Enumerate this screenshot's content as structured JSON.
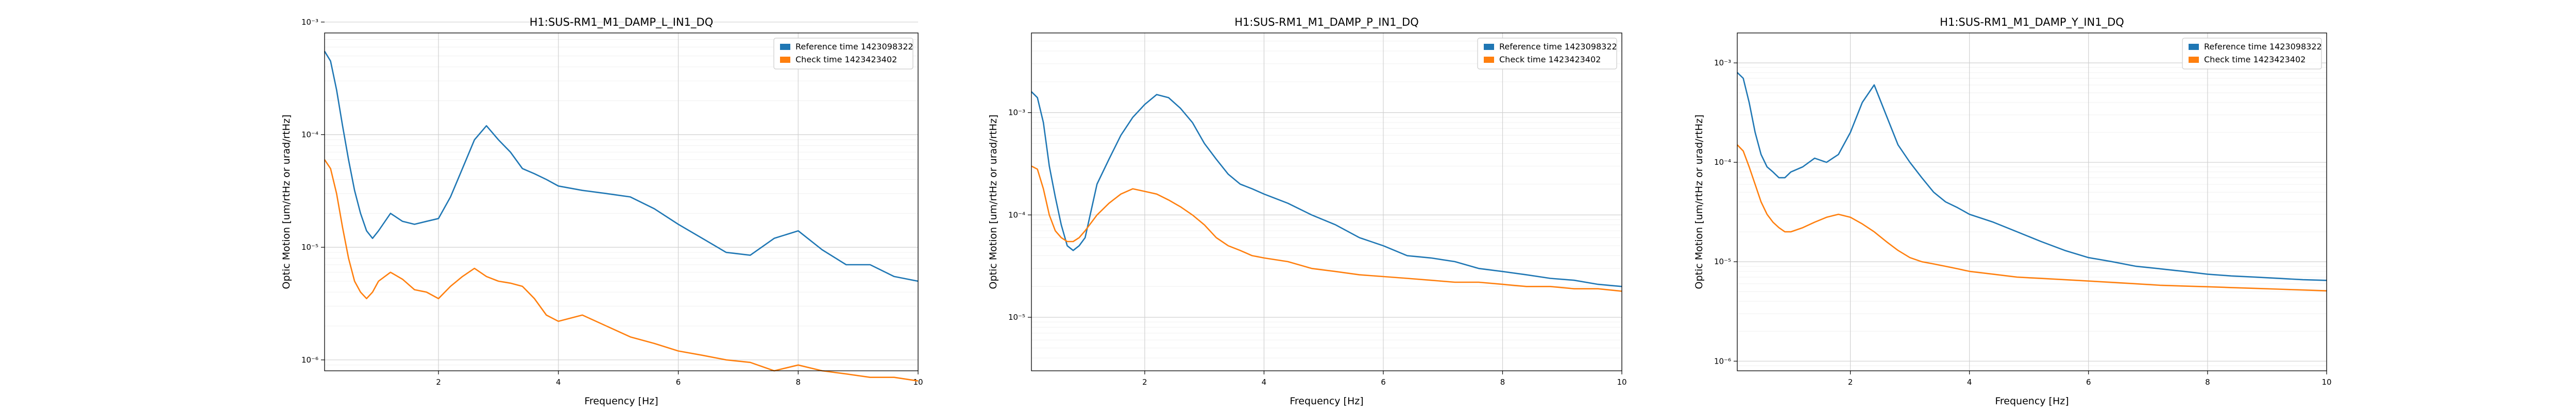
{
  "legend_labels": [
    "Reference time 1423098322",
    "Check time 1423423402"
  ],
  "colors": {
    "reference": "#1f77b4",
    "check": "#ff7f0e"
  },
  "chart_data": [
    {
      "type": "line",
      "title": "H1:SUS-RM1_M1_DAMP_L_IN1_DQ",
      "xlabel": "Frequency [Hz]",
      "ylabel": "Optic Motion [um/rtHz or urad/rtHz]",
      "xlim": [
        0.1,
        10
      ],
      "ylim": [
        8e-07,
        0.0008
      ],
      "yscale": "log",
      "grid": true,
      "legend": "top-right",
      "xticks": [
        2,
        4,
        6,
        8,
        10
      ],
      "yticks": [
        1e-06,
        1e-05,
        0.0001,
        0.001
      ],
      "ytick_labels": [
        "10⁻⁶",
        "10⁻⁵",
        "10⁻⁴",
        "10⁻³"
      ],
      "x": [
        0.1,
        0.2,
        0.3,
        0.4,
        0.5,
        0.6,
        0.7,
        0.8,
        0.9,
        1.0,
        1.2,
        1.4,
        1.6,
        1.8,
        2.0,
        2.2,
        2.4,
        2.6,
        2.8,
        3.0,
        3.2,
        3.4,
        3.6,
        3.8,
        4.0,
        4.4,
        4.8,
        5.2,
        5.6,
        6.0,
        6.4,
        6.8,
        7.2,
        7.6,
        8.0,
        8.4,
        8.8,
        9.2,
        9.6,
        10.0
      ],
      "series": [
        {
          "name": "Reference time 1423098322",
          "values": [
            0.00055,
            0.00045,
            0.00025,
            0.00012,
            6e-05,
            3.2e-05,
            2e-05,
            1.4e-05,
            1.2e-05,
            1.4e-05,
            2e-05,
            1.7e-05,
            1.6e-05,
            1.7e-05,
            1.8e-05,
            2.8e-05,
            5e-05,
            9e-05,
            0.00012,
            9e-05,
            7e-05,
            5e-05,
            4.5e-05,
            4e-05,
            3.5e-05,
            3.2e-05,
            3e-05,
            2.8e-05,
            2.2e-05,
            1.6e-05,
            1.2e-05,
            9e-06,
            8.5e-06,
            1.2e-05,
            1.4e-05,
            9.5e-06,
            7e-06,
            7e-06,
            5.5e-06,
            5e-06
          ]
        },
        {
          "name": "Check time 1423423402",
          "values": [
            6e-05,
            5e-05,
            3e-05,
            1.5e-05,
            8e-06,
            5e-06,
            4e-06,
            3.5e-06,
            4e-06,
            5e-06,
            6e-06,
            5.2e-06,
            4.2e-06,
            4e-06,
            3.5e-06,
            4.5e-06,
            5.5e-06,
            6.5e-06,
            5.5e-06,
            5e-06,
            4.8e-06,
            4.5e-06,
            3.5e-06,
            2.5e-06,
            2.2e-06,
            2.5e-06,
            2e-06,
            1.6e-06,
            1.4e-06,
            1.2e-06,
            1.1e-06,
            1e-06,
            9.5e-07,
            8e-07,
            9e-07,
            8e-07,
            7.5e-07,
            7e-07,
            7e-07,
            6.5e-07
          ]
        }
      ]
    },
    {
      "type": "line",
      "title": "H1:SUS-RM1_M1_DAMP_P_IN1_DQ",
      "xlabel": "Frequency [Hz]",
      "ylabel": "Optic Motion [um/rtHz or urad/rtHz]",
      "xlim": [
        0.1,
        10
      ],
      "ylim": [
        3e-06,
        0.006
      ],
      "yscale": "log",
      "grid": true,
      "legend": "top-right",
      "xticks": [
        2,
        4,
        6,
        8,
        10
      ],
      "yticks": [
        1e-05,
        0.0001,
        0.001
      ],
      "ytick_labels": [
        "10⁻⁵",
        "10⁻⁴",
        "10⁻³"
      ],
      "x": [
        0.1,
        0.2,
        0.3,
        0.4,
        0.5,
        0.6,
        0.7,
        0.8,
        0.9,
        1.0,
        1.2,
        1.4,
        1.6,
        1.8,
        2.0,
        2.2,
        2.4,
        2.6,
        2.8,
        3.0,
        3.2,
        3.4,
        3.6,
        3.8,
        4.0,
        4.4,
        4.8,
        5.2,
        5.6,
        6.0,
        6.4,
        6.8,
        7.2,
        7.6,
        8.0,
        8.4,
        8.8,
        9.2,
        9.6,
        10.0
      ],
      "series": [
        {
          "name": "Reference time 1423098322",
          "values": [
            0.0016,
            0.0014,
            0.0008,
            0.0003,
            0.00015,
            8e-05,
            5e-05,
            4.5e-05,
            5e-05,
            6e-05,
            0.0002,
            0.00035,
            0.0006,
            0.0009,
            0.0012,
            0.0015,
            0.0014,
            0.0011,
            0.0008,
            0.0005,
            0.00035,
            0.00025,
            0.0002,
            0.00018,
            0.00016,
            0.00013,
            0.0001,
            8e-05,
            6e-05,
            5e-05,
            4e-05,
            3.8e-05,
            3.5e-05,
            3e-05,
            2.8e-05,
            2.6e-05,
            2.4e-05,
            2.3e-05,
            2.1e-05,
            2e-05
          ]
        },
        {
          "name": "Check time 1423423402",
          "values": [
            0.0003,
            0.00028,
            0.00018,
            0.0001,
            7e-05,
            6e-05,
            5.5e-05,
            5.5e-05,
            6e-05,
            7e-05,
            0.0001,
            0.00013,
            0.00016,
            0.00018,
            0.00017,
            0.00016,
            0.00014,
            0.00012,
            0.0001,
            8e-05,
            6e-05,
            5e-05,
            4.5e-05,
            4e-05,
            3.8e-05,
            3.5e-05,
            3e-05,
            2.8e-05,
            2.6e-05,
            2.5e-05,
            2.4e-05,
            2.3e-05,
            2.2e-05,
            2.2e-05,
            2.1e-05,
            2e-05,
            2e-05,
            1.9e-05,
            1.9e-05,
            1.8e-05
          ]
        }
      ]
    },
    {
      "type": "line",
      "title": "H1:SUS-RM1_M1_DAMP_Y_IN1_DQ",
      "xlabel": "Frequency [Hz]",
      "ylabel": "Optic Motion [um/rtHz or urad/rtHz]",
      "xlim": [
        0.1,
        10
      ],
      "ylim": [
        8e-07,
        0.002
      ],
      "yscale": "log",
      "grid": true,
      "legend": "top-right",
      "xticks": [
        2,
        4,
        6,
        8,
        10
      ],
      "yticks": [
        1e-06,
        1e-05,
        0.0001,
        0.001
      ],
      "ytick_labels": [
        "10⁻⁶",
        "10⁻⁵",
        "10⁻⁴",
        "10⁻³"
      ],
      "x": [
        0.1,
        0.2,
        0.3,
        0.4,
        0.5,
        0.6,
        0.7,
        0.8,
        0.9,
        1.0,
        1.2,
        1.4,
        1.6,
        1.8,
        2.0,
        2.2,
        2.4,
        2.6,
        2.8,
        3.0,
        3.2,
        3.4,
        3.6,
        3.8,
        4.0,
        4.4,
        4.8,
        5.2,
        5.6,
        6.0,
        6.4,
        6.8,
        7.2,
        7.6,
        8.0,
        8.4,
        8.8,
        9.2,
        9.6,
        10.0
      ],
      "series": [
        {
          "name": "Reference time 1423098322",
          "values": [
            0.0008,
            0.0007,
            0.0004,
            0.0002,
            0.00012,
            9e-05,
            8e-05,
            7e-05,
            7e-05,
            8e-05,
            9e-05,
            0.00011,
            0.0001,
            0.00012,
            0.0002,
            0.0004,
            0.0006,
            0.0003,
            0.00015,
            0.0001,
            7e-05,
            5e-05,
            4e-05,
            3.5e-05,
            3e-05,
            2.5e-05,
            2e-05,
            1.6e-05,
            1.3e-05,
            1.1e-05,
            1e-05,
            9e-06,
            8.5e-06,
            8e-06,
            7.5e-06,
            7.2e-06,
            7e-06,
            6.8e-06,
            6.6e-06,
            6.5e-06
          ]
        },
        {
          "name": "Check time 1423423402",
          "values": [
            0.00015,
            0.00013,
            9e-05,
            6e-05,
            4e-05,
            3e-05,
            2.5e-05,
            2.2e-05,
            2e-05,
            2e-05,
            2.2e-05,
            2.5e-05,
            2.8e-05,
            3e-05,
            2.8e-05,
            2.4e-05,
            2e-05,
            1.6e-05,
            1.3e-05,
            1.1e-05,
            1e-05,
            9.5e-06,
            9e-06,
            8.5e-06,
            8e-06,
            7.5e-06,
            7e-06,
            6.8e-06,
            6.6e-06,
            6.4e-06,
            6.2e-06,
            6e-06,
            5.8e-06,
            5.7e-06,
            5.6e-06,
            5.5e-06,
            5.4e-06,
            5.3e-06,
            5.2e-06,
            5.1e-06
          ]
        }
      ]
    }
  ]
}
